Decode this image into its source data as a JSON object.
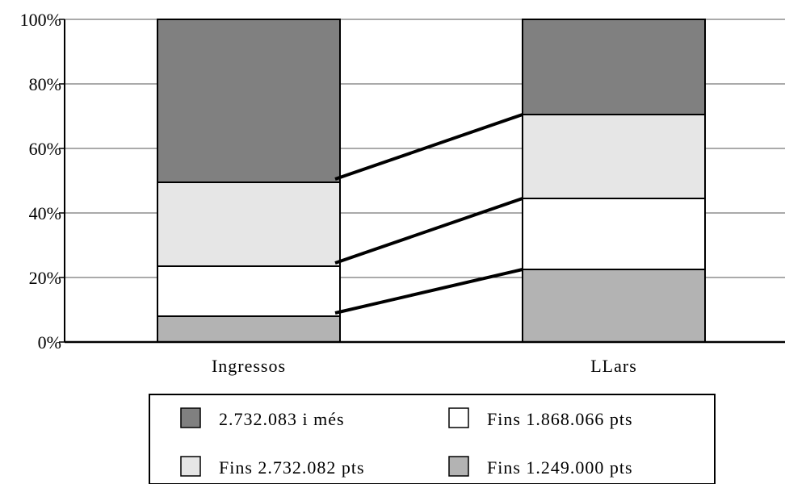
{
  "chart_data": {
    "type": "bar",
    "stacked": true,
    "normalized": true,
    "categories": [
      "Ingressos",
      "LLars"
    ],
    "yticks": [
      "0%",
      "20%",
      "40%",
      "60%",
      "80%",
      "100%"
    ],
    "ylim": [
      0,
      100
    ],
    "grid": true,
    "legend_position": "bottom",
    "series": [
      {
        "name": "Fins 1.249.000 pts",
        "color": "#b3b3b3",
        "values": [
          8,
          22.5
        ]
      },
      {
        "name": "Fins 1.868.066 pts",
        "color": "#ffffff",
        "values": [
          15.5,
          22
        ]
      },
      {
        "name": "Fins 2.732.082 pts",
        "color": "#e6e6e6",
        "values": [
          26,
          26
        ]
      },
      {
        "name": "2.732.083 i més",
        "color": "#808080",
        "values": [
          50.5,
          29.5
        ]
      }
    ],
    "legend_order": [
      3,
      1,
      2,
      0
    ]
  }
}
